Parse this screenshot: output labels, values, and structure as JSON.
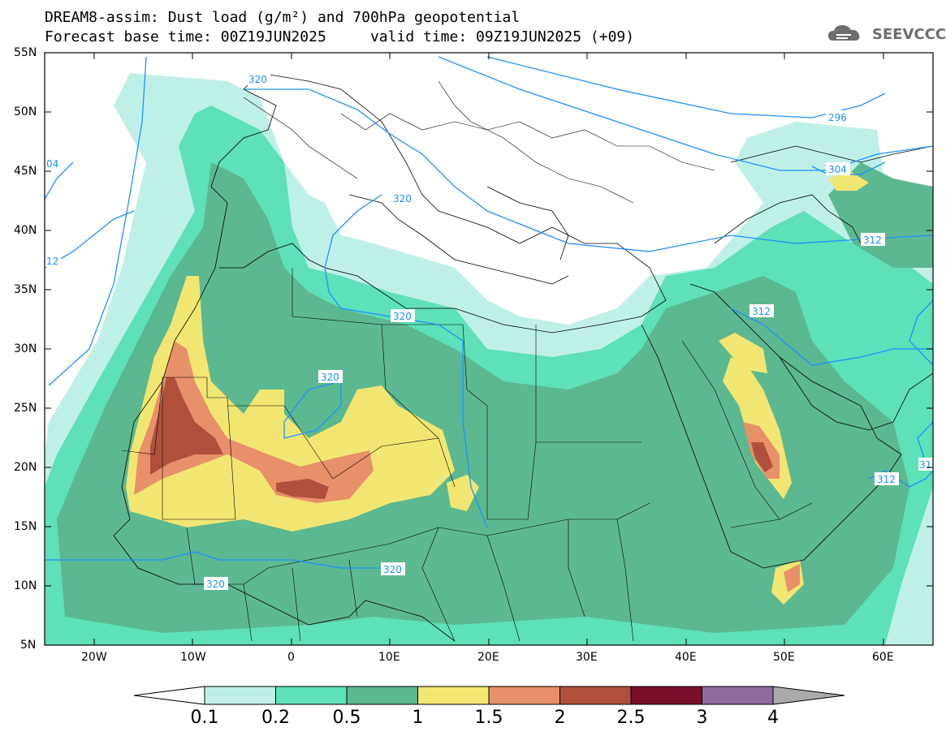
{
  "title": {
    "line1": "DREAM8-assim: Dust load (g/m²) and 700hPa geopotential",
    "line2": "Forecast base time: 00Z19JUN2025     valid time: 09Z19JUN2025 (+09)"
  },
  "logo": {
    "text": "SEEVCCC",
    "icon": "cloud-icon"
  },
  "axes": {
    "lat_labels": [
      "55N",
      "50N",
      "45N",
      "40N",
      "35N",
      "30N",
      "25N",
      "20N",
      "15N",
      "10N",
      "5N"
    ],
    "lon_labels": [
      "20W",
      "10W",
      "0",
      "10E",
      "20E",
      "30E",
      "40E",
      "50E",
      "60E"
    ]
  },
  "contour_labels": [
    "320",
    "296",
    "304",
    "312",
    "04",
    "12",
    "320",
    "320",
    "320",
    "312",
    "312",
    "320",
    "320",
    "31"
  ],
  "colorbar": {
    "labels": [
      "0.1",
      "0.2",
      "0.5",
      "1",
      "1.5",
      "2",
      "2.5",
      "3",
      "4"
    ],
    "colors": [
      "#bff0e8",
      "#5ee0b8",
      "#5cb890",
      "#f2e672",
      "#e8906a",
      "#b0503c",
      "#7a0f2a",
      "#8e6a9e"
    ],
    "extension_colors": {
      "low": "#ffffff",
      "high": "#aaaaaa"
    }
  },
  "contour_color": "#1e90ff"
}
